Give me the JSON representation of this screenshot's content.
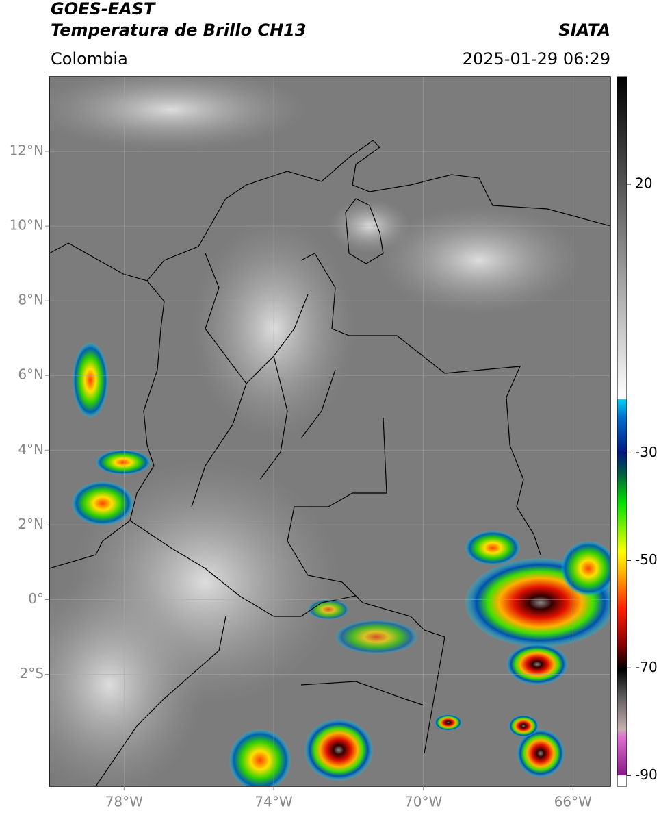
{
  "header": {
    "title": "GOES-EAST",
    "subtitle": "Temperatura de Brillo CH13",
    "source": "SIATA",
    "region": "Colombia",
    "datetime": "2025-01-29 06:29"
  },
  "map": {
    "xlim": [
      -80,
      -65
    ],
    "ylim": [
      -5,
      14
    ],
    "xticks": [
      {
        "value": -78,
        "label": "78°W"
      },
      {
        "value": -74,
        "label": "74°W"
      },
      {
        "value": -70,
        "label": "70°W"
      },
      {
        "value": -66,
        "label": "66°W"
      }
    ],
    "yticks": [
      {
        "value": 12,
        "label": "12°N"
      },
      {
        "value": 10,
        "label": "10°N"
      },
      {
        "value": 8,
        "label": "8°N"
      },
      {
        "value": 6,
        "label": "6°N"
      },
      {
        "value": 4,
        "label": "4°N"
      },
      {
        "value": 2,
        "label": "2°N"
      },
      {
        "value": 0,
        "label": "0°"
      },
      {
        "value": -2,
        "label": "2°S"
      }
    ],
    "grid": true
  },
  "colorbar": {
    "clim": [
      -92,
      40
    ],
    "ticks": [
      20,
      -30,
      -50,
      -70,
      -90
    ]
  }
}
